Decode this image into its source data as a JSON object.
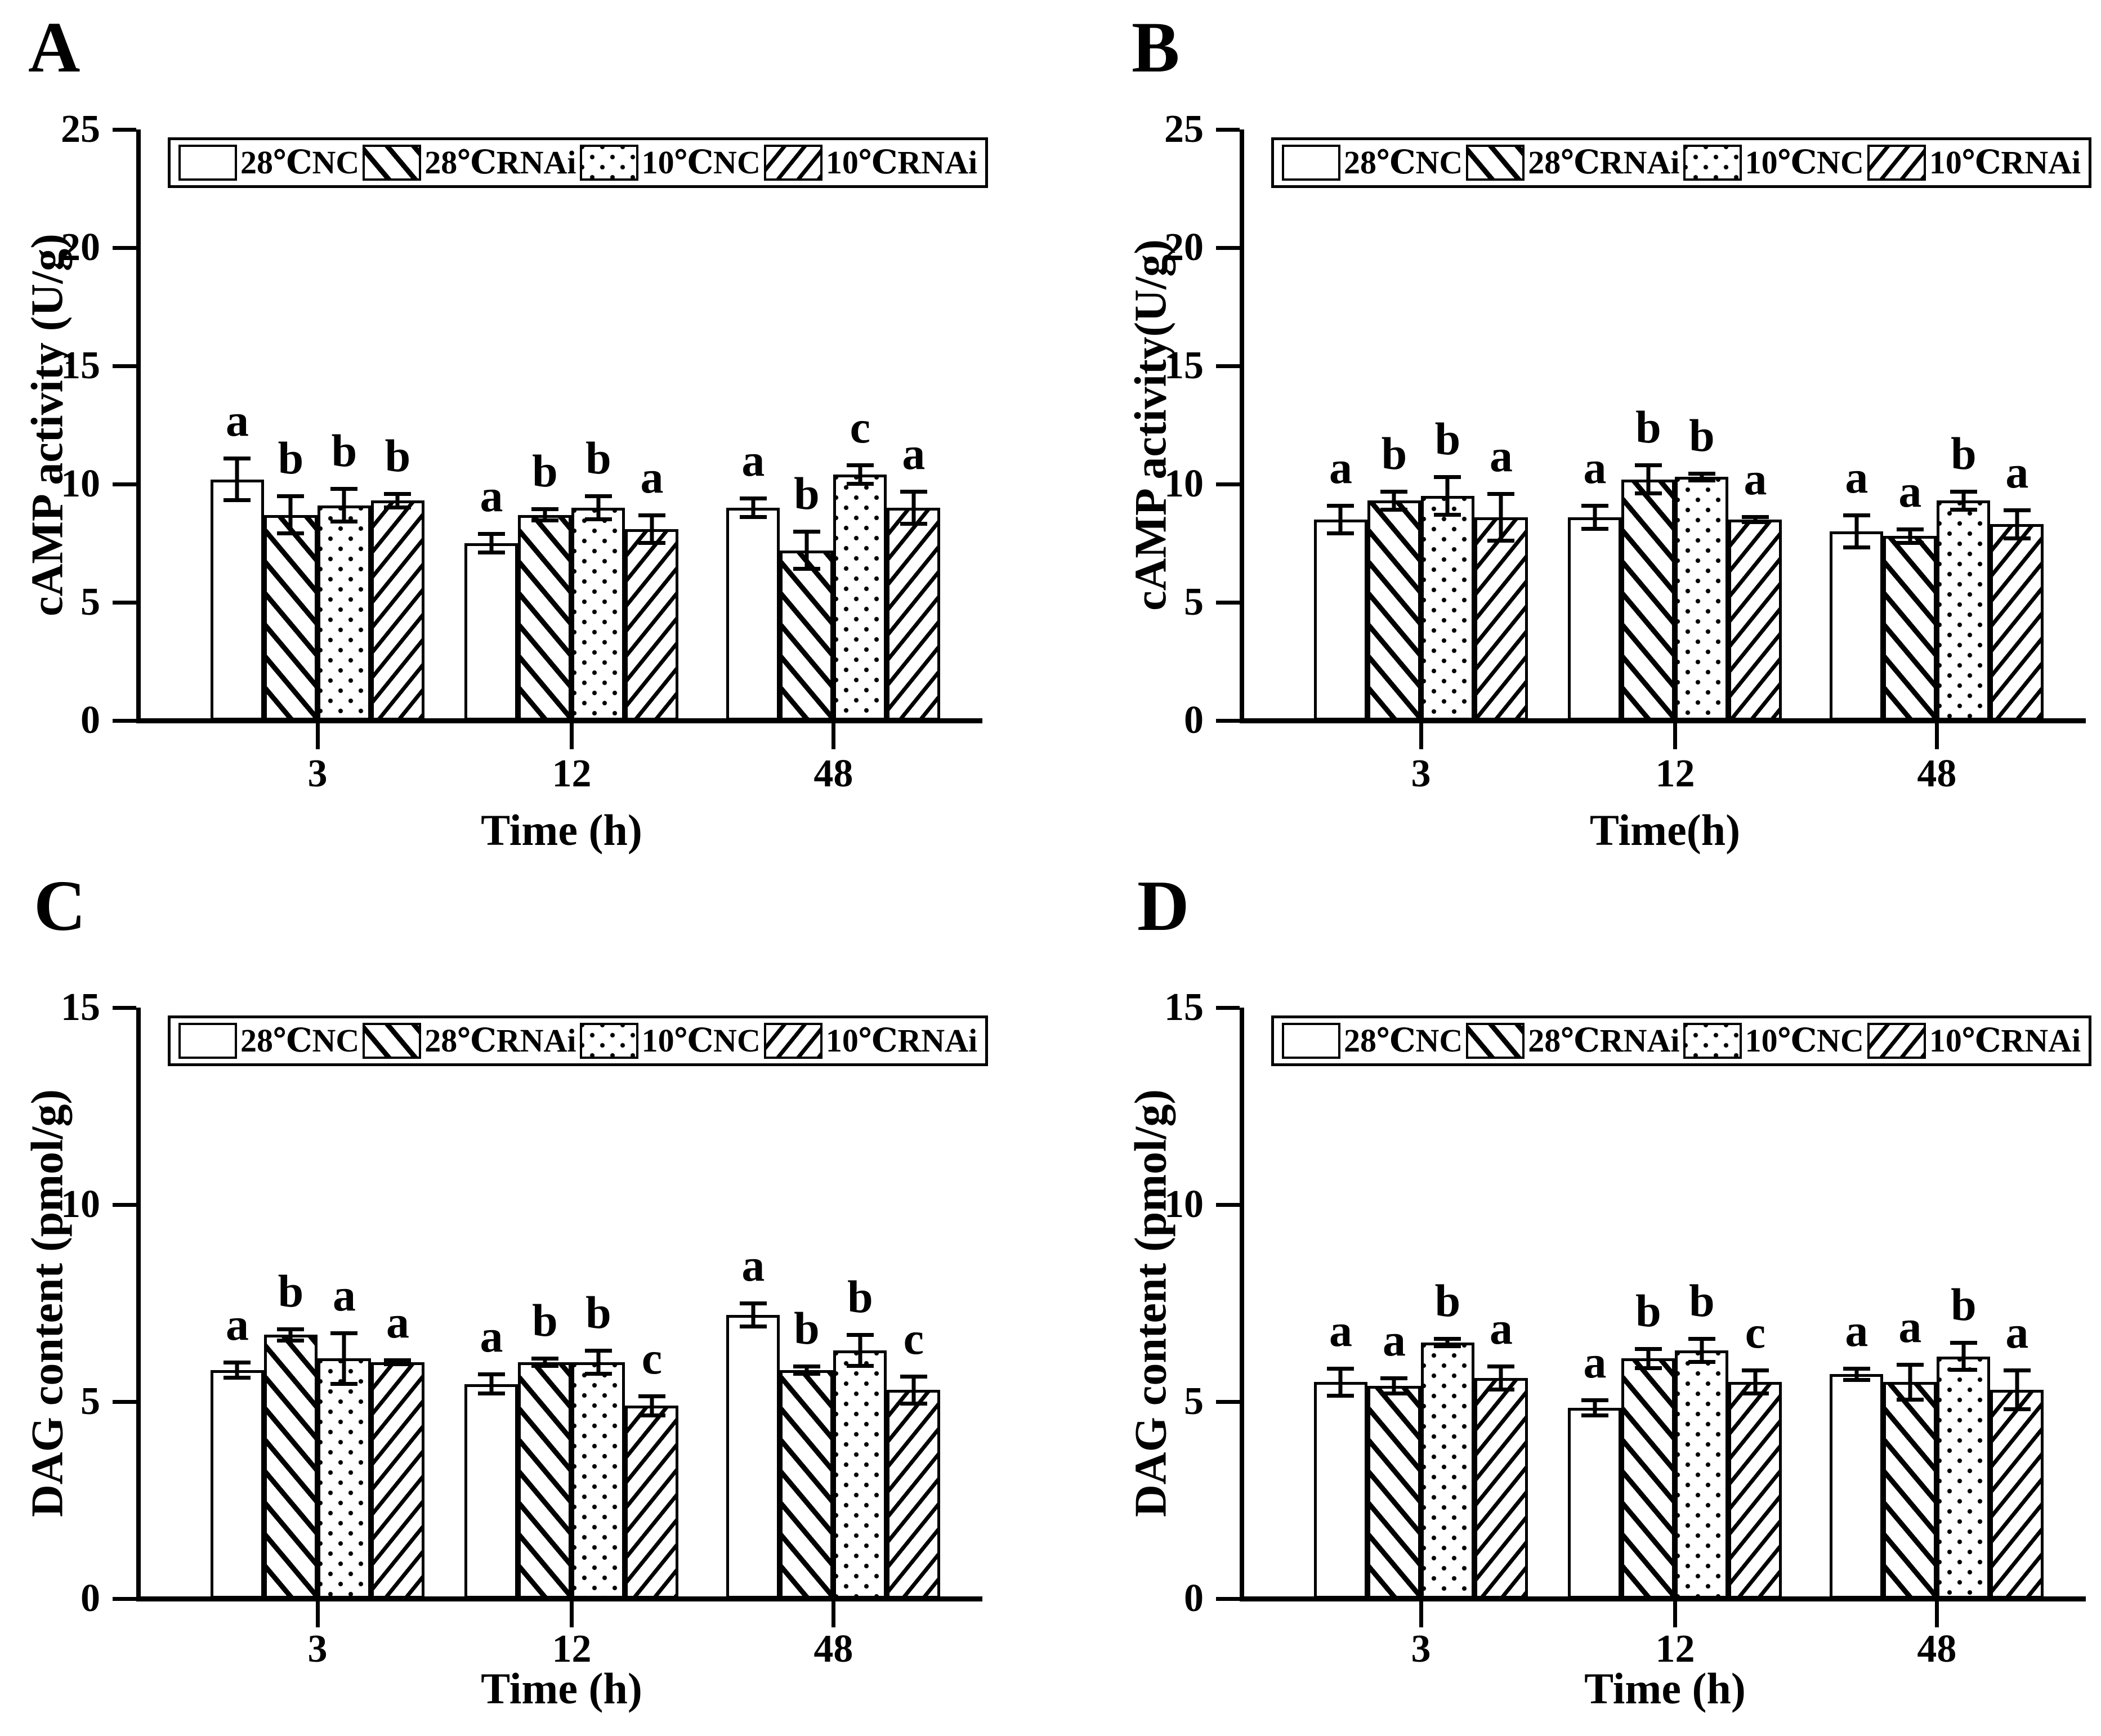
{
  "figure": {
    "background_color": "#ffffff",
    "ink_color": "#000000",
    "panels": [
      "A",
      "B",
      "C",
      "D"
    ]
  },
  "chart_data": [
    {
      "panel_letter": "A",
      "type": "bar",
      "title": "",
      "xlabel": "Time (h)",
      "ylabel": "cAMP activity (U/g)",
      "ylim": [
        0,
        25
      ],
      "yticks": [
        0,
        5,
        10,
        15,
        20,
        25
      ],
      "categories": [
        "3",
        "12",
        "48"
      ],
      "grid": false,
      "legend_position": "top-inside",
      "legend": [
        "28℃NC",
        "28℃RNAi",
        "10℃NC",
        "10℃RNAi"
      ],
      "series": [
        {
          "name": "28℃NC",
          "pattern": "plain",
          "values": [
            10.2,
            7.5,
            9.0
          ],
          "errors": [
            0.9,
            0.4,
            0.4
          ],
          "letters": [
            "a",
            "a",
            "a"
          ]
        },
        {
          "name": "28℃RNAi",
          "pattern": "hatch-fwd",
          "values": [
            8.7,
            8.7,
            7.2
          ],
          "errors": [
            0.8,
            0.25,
            0.8
          ],
          "letters": [
            "b",
            "b",
            "b"
          ]
        },
        {
          "name": "10℃NC",
          "pattern": "dots",
          "values": [
            9.1,
            9.0,
            10.4
          ],
          "errors": [
            0.7,
            0.5,
            0.4
          ],
          "letters": [
            "b",
            "b",
            "c"
          ]
        },
        {
          "name": "10℃RNAi",
          "pattern": "hatch-back",
          "values": [
            9.3,
            8.1,
            9.0
          ],
          "errors": [
            0.3,
            0.6,
            0.7
          ],
          "letters": [
            "b",
            "a",
            "a"
          ]
        }
      ]
    },
    {
      "panel_letter": "B",
      "type": "bar",
      "title": "",
      "xlabel": "Time(h)",
      "ylabel": "cAMP activity(U/g)",
      "ylim": [
        0,
        25
      ],
      "yticks": [
        0,
        5,
        10,
        15,
        20,
        25
      ],
      "categories": [
        "3",
        "12",
        "48"
      ],
      "grid": false,
      "legend_position": "top-inside",
      "legend": [
        "28℃NC",
        "28℃RNAi",
        "10℃NC",
        "10℃RNAi"
      ],
      "series": [
        {
          "name": "28℃NC",
          "pattern": "plain",
          "values": [
            8.5,
            8.6,
            8.0
          ],
          "errors": [
            0.6,
            0.5,
            0.7
          ],
          "letters": [
            "a",
            "a",
            "a"
          ]
        },
        {
          "name": "28℃RNAi",
          "pattern": "hatch-fwd",
          "values": [
            9.3,
            10.2,
            7.8
          ],
          "errors": [
            0.4,
            0.6,
            0.3
          ],
          "letters": [
            "b",
            "b",
            "a"
          ]
        },
        {
          "name": "10℃NC",
          "pattern": "dots",
          "values": [
            9.5,
            10.3,
            9.3
          ],
          "errors": [
            0.8,
            0.15,
            0.4
          ],
          "letters": [
            "b",
            "b",
            "b"
          ]
        },
        {
          "name": "10℃RNAi",
          "pattern": "hatch-back",
          "values": [
            8.6,
            8.5,
            8.3
          ],
          "errors": [
            1.0,
            0.12,
            0.6
          ],
          "letters": [
            "a",
            "a",
            "a"
          ]
        }
      ]
    },
    {
      "panel_letter": "C",
      "type": "bar",
      "title": "",
      "xlabel": "Time (h)",
      "ylabel": "DAG content (pmol/g)",
      "ylim": [
        0,
        15
      ],
      "yticks": [
        0,
        5,
        10,
        15
      ],
      "categories": [
        "3",
        "12",
        "48"
      ],
      "grid": false,
      "legend_position": "top-inside",
      "legend": [
        "28℃NC",
        "28℃RNAi",
        "10℃NC",
        "10℃RNAi"
      ],
      "series": [
        {
          "name": "28℃NC",
          "pattern": "plain",
          "values": [
            5.8,
            5.45,
            7.2
          ],
          "errors": [
            0.2,
            0.25,
            0.3
          ],
          "letters": [
            "a",
            "a",
            "a"
          ]
        },
        {
          "name": "28℃RNAi",
          "pattern": "hatch-fwd",
          "values": [
            6.7,
            6.0,
            5.8
          ],
          "errors": [
            0.15,
            0.1,
            0.1
          ],
          "letters": [
            "b",
            "b",
            "b"
          ]
        },
        {
          "name": "10℃NC",
          "pattern": "dots",
          "values": [
            6.1,
            6.0,
            6.3
          ],
          "errors": [
            0.65,
            0.3,
            0.4
          ],
          "letters": [
            "a",
            "b",
            "b"
          ]
        },
        {
          "name": "10℃RNAi",
          "pattern": "hatch-back",
          "values": [
            6.0,
            4.9,
            5.3
          ],
          "errors": [
            0.06,
            0.25,
            0.35
          ],
          "letters": [
            "a",
            "c",
            "c"
          ]
        }
      ]
    },
    {
      "panel_letter": "D",
      "type": "bar",
      "title": "",
      "xlabel": "Time (h)",
      "ylabel": "DAG content (pmol/g)",
      "ylim": [
        0,
        15
      ],
      "yticks": [
        0,
        5,
        10,
        15
      ],
      "categories": [
        "3",
        "12",
        "48"
      ],
      "grid": false,
      "legend_position": "top-inside",
      "legend": [
        "28℃NC",
        "28℃RNAi",
        "10℃NC",
        "10℃RNAi"
      ],
      "series": [
        {
          "name": "28℃NC",
          "pattern": "plain",
          "values": [
            5.5,
            4.85,
            5.7
          ],
          "errors": [
            0.35,
            0.2,
            0.15
          ],
          "letters": [
            "a",
            "a",
            "a"
          ]
        },
        {
          "name": "28℃RNAi",
          "pattern": "hatch-fwd",
          "values": [
            5.4,
            6.1,
            5.5
          ],
          "errors": [
            0.2,
            0.25,
            0.45
          ],
          "letters": [
            "a",
            "b",
            "a"
          ]
        },
        {
          "name": "10℃NC",
          "pattern": "dots",
          "values": [
            6.5,
            6.3,
            6.15
          ],
          "errors": [
            0.1,
            0.3,
            0.35
          ],
          "letters": [
            "b",
            "b",
            "b"
          ]
        },
        {
          "name": "10℃RNAi",
          "pattern": "hatch-back",
          "values": [
            5.6,
            5.5,
            5.3
          ],
          "errors": [
            0.3,
            0.3,
            0.5
          ],
          "letters": [
            "a",
            "c",
            "a"
          ]
        }
      ]
    }
  ]
}
